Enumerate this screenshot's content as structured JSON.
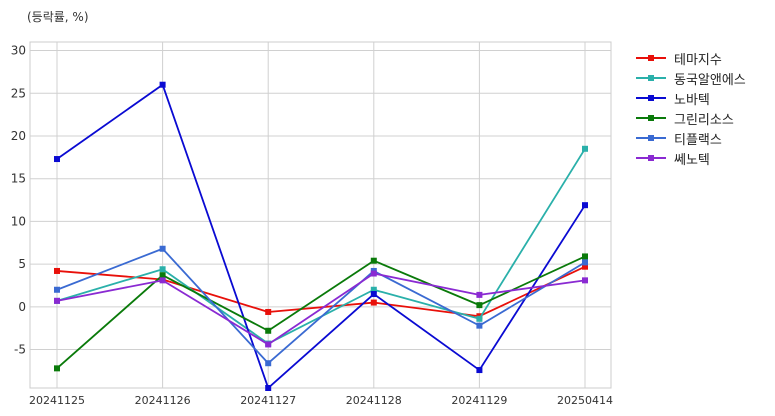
{
  "chart_data": {
    "type": "line",
    "title": "",
    "unit_label": "(등락률, %)",
    "xlabel": "",
    "ylabel": "",
    "categories": [
      "20241125",
      "20241126",
      "20241127",
      "20241128",
      "20241129",
      "20250414"
    ],
    "yticks": [
      -5,
      0,
      5,
      10,
      15,
      20,
      25,
      30
    ],
    "ylim": [
      -9.5,
      31
    ],
    "grid": true,
    "legend_position": "outside-top-right",
    "series": [
      {
        "name": "테마지수",
        "color": "#e8100a",
        "values": [
          4.2,
          3.2,
          -0.6,
          0.5,
          -1.1,
          4.7
        ]
      },
      {
        "name": "동국알앤에스",
        "color": "#2ab0aa",
        "values": [
          0.7,
          4.4,
          -4.3,
          2.0,
          -1.4,
          18.5
        ]
      },
      {
        "name": "노바텍",
        "color": "#0a0ad2",
        "values": [
          17.3,
          26.0,
          -9.5,
          1.5,
          -7.4,
          11.9
        ]
      },
      {
        "name": "그린리소스",
        "color": "#0a7a0a",
        "values": [
          -7.2,
          3.7,
          -2.8,
          5.4,
          0.2,
          5.9
        ]
      },
      {
        "name": "티플랙스",
        "color": "#3a6ad2",
        "values": [
          2.0,
          6.8,
          -6.6,
          4.2,
          -2.2,
          5.2
        ]
      },
      {
        "name": "쎄노텍",
        "color": "#8a2ad2",
        "values": [
          0.7,
          3.1,
          -4.4,
          3.9,
          1.4,
          3.1
        ]
      }
    ]
  }
}
